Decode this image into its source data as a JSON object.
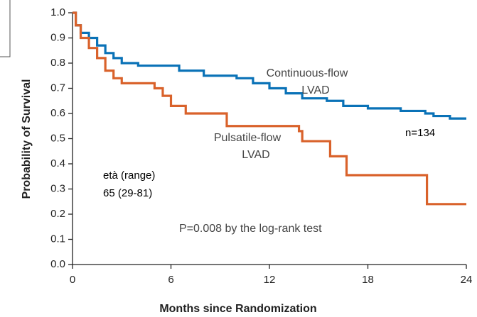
{
  "chart_data": {
    "type": "line",
    "step": true,
    "xlabel": "Months since Randomization",
    "ylabel": "Probability of Survival",
    "xlim": [
      0,
      24
    ],
    "ylim": [
      0,
      1
    ],
    "xticks": [
      0,
      6,
      12,
      18,
      24
    ],
    "yticks": [
      {
        "value": 0,
        "label": "0.0"
      },
      0.1,
      0.2,
      0.3,
      0.4,
      0.5,
      0.6,
      0.7,
      0.8,
      0.9,
      {
        "value": 1,
        "label": "1.0"
      }
    ],
    "series": [
      {
        "name": "Continuous-flow LVAD",
        "color": "#0a72b7",
        "x": [
          0,
          0.2,
          0.5,
          1,
          1.5,
          2,
          2.5,
          3,
          4,
          6.5,
          8,
          10,
          11,
          12,
          13,
          14,
          15.5,
          16.5,
          18,
          20,
          21.5,
          22,
          23,
          24
        ],
        "values": [
          1,
          0.95,
          0.92,
          0.9,
          0.87,
          0.84,
          0.82,
          0.8,
          0.79,
          0.77,
          0.75,
          0.74,
          0.72,
          0.7,
          0.68,
          0.66,
          0.65,
          0.63,
          0.62,
          0.61,
          0.6,
          0.59,
          0.58,
          0.58
        ]
      },
      {
        "name": "Pulsatile-flow LVAD",
        "color": "#d9622b",
        "x": [
          0,
          0.2,
          0.5,
          1,
          1.5,
          2,
          2.5,
          3,
          5,
          5.5,
          6,
          6.9,
          9.4,
          13.8,
          14,
          15.7,
          16.7,
          21.6,
          24
        ],
        "values": [
          1,
          0.95,
          0.9,
          0.86,
          0.82,
          0.77,
          0.74,
          0.72,
          0.7,
          0.67,
          0.63,
          0.6,
          0.55,
          0.53,
          0.49,
          0.43,
          0.355,
          0.24,
          0.24
        ]
      }
    ],
    "annotations": [
      "n=134",
      "età (range)",
      "65 (29-81)",
      "P=0.008 by the log-rank test"
    ]
  }
}
